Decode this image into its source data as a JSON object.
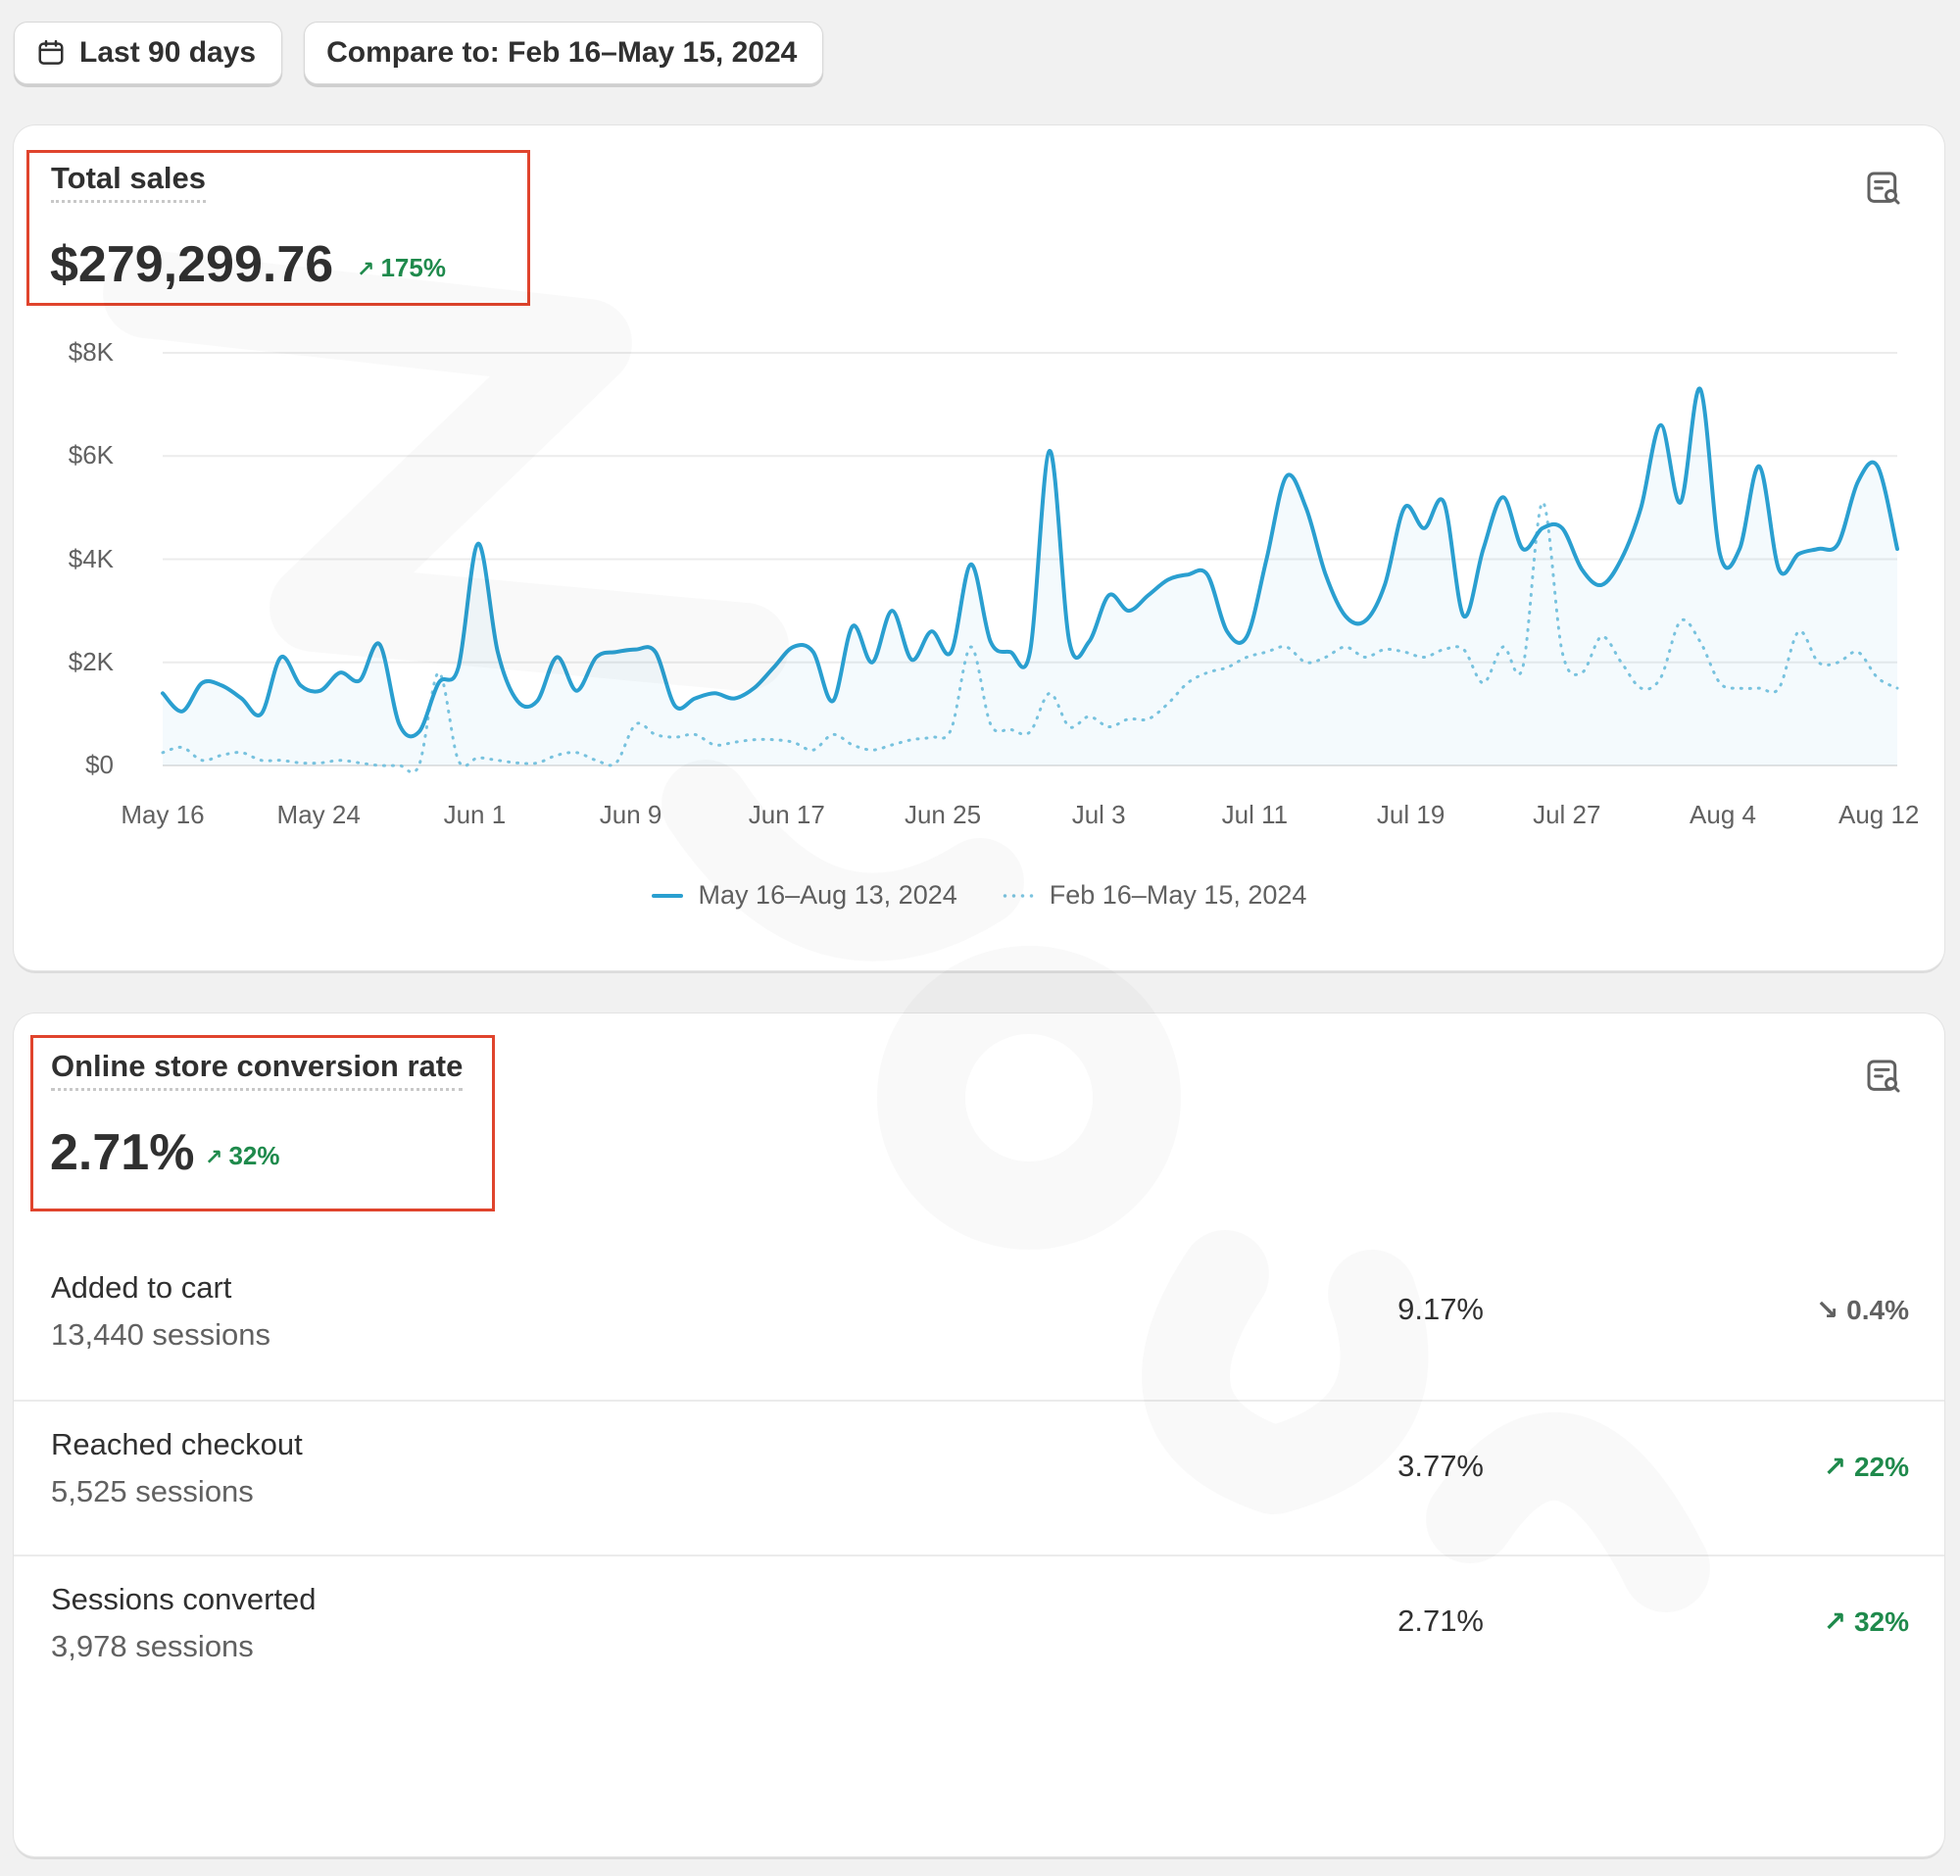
{
  "toolbar": {
    "date_range_label": "Last 90 days",
    "compare_label": "Compare to: Feb 16–May 15, 2024"
  },
  "total_sales": {
    "title": "Total sales",
    "value": "$279,299.76",
    "change": "175%",
    "change_direction": "up"
  },
  "chart_data": {
    "type": "line",
    "title": "Total sales",
    "xlabel": "",
    "ylabel": "",
    "ylim": [
      0,
      8000
    ],
    "y_ticks": [
      "$8K",
      "$6K",
      "$4K",
      "$2K",
      "$0"
    ],
    "x_ticks": [
      "May 16",
      "May 24",
      "Jun 1",
      "Jun 9",
      "Jun 17",
      "Jun 25",
      "Jul 3",
      "Jul 11",
      "Jul 19",
      "Jul 27",
      "Aug 4",
      "Aug 12"
    ],
    "grid": true,
    "legend": "bottom-center",
    "series": [
      {
        "name": "May 16–Aug 13, 2024",
        "style": "solid",
        "color": "#2a9fd0",
        "values": [
          1400,
          1050,
          1600,
          1550,
          1300,
          1000,
          2100,
          1550,
          1450,
          1800,
          1650,
          2350,
          800,
          650,
          1600,
          1900,
          4300,
          2200,
          1250,
          1250,
          2100,
          1450,
          2100,
          2200,
          2250,
          2200,
          1150,
          1300,
          1400,
          1300,
          1500,
          1900,
          2300,
          2200,
          1250,
          2700,
          2000,
          3000,
          2050,
          2600,
          2200,
          3900,
          2400,
          2200,
          2200,
          6100,
          2400,
          2400,
          3300,
          3000,
          3300,
          3600,
          3700,
          3700,
          2600,
          2500,
          4000,
          5600,
          5000,
          3700,
          2900,
          2800,
          3500,
          5000,
          4600,
          5100,
          2900,
          4200,
          5200,
          4200,
          4600,
          4600,
          3800,
          3500,
          4000,
          5000,
          6600,
          5100,
          7300,
          4100,
          4200,
          5800,
          3800,
          4100,
          4200,
          4300,
          5500,
          5800,
          4200
        ]
      },
      {
        "name": "Feb 16–May 15, 2024",
        "style": "dotted",
        "color": "#7cc4df",
        "values": [
          250,
          350,
          100,
          200,
          250,
          100,
          100,
          50,
          50,
          100,
          50,
          0,
          0,
          0,
          1800,
          100,
          150,
          100,
          50,
          50,
          200,
          250,
          100,
          50,
          800,
          600,
          550,
          600,
          400,
          450,
          500,
          500,
          450,
          300,
          600,
          400,
          300,
          400,
          500,
          550,
          700,
          2300,
          800,
          700,
          650,
          1400,
          750,
          950,
          750,
          900,
          900,
          1200,
          1600,
          1800,
          1900,
          2100,
          2200,
          2300,
          2000,
          2100,
          2300,
          2100,
          2250,
          2200,
          2100,
          2250,
          2250,
          1600,
          2300,
          1900,
          5100,
          2200,
          1800,
          2500,
          2000,
          1500,
          1700,
          2800,
          2400,
          1600,
          1500,
          1500,
          1500,
          2600,
          2000,
          2000,
          2200,
          1700,
          1500
        ]
      }
    ]
  },
  "conversion": {
    "title": "Online store conversion rate",
    "value": "2.71%",
    "change": "32%",
    "change_direction": "up",
    "rows": [
      {
        "label": "Added to cart",
        "sessions": "13,440 sessions",
        "value": "9.17%",
        "change": "0.4%",
        "direction": "down"
      },
      {
        "label": "Reached checkout",
        "sessions": "5,525 sessions",
        "value": "3.77%",
        "change": "22%",
        "direction": "up"
      },
      {
        "label": "Sessions converted",
        "sessions": "3,978 sessions",
        "value": "2.71%",
        "change": "32%",
        "direction": "up"
      }
    ]
  }
}
